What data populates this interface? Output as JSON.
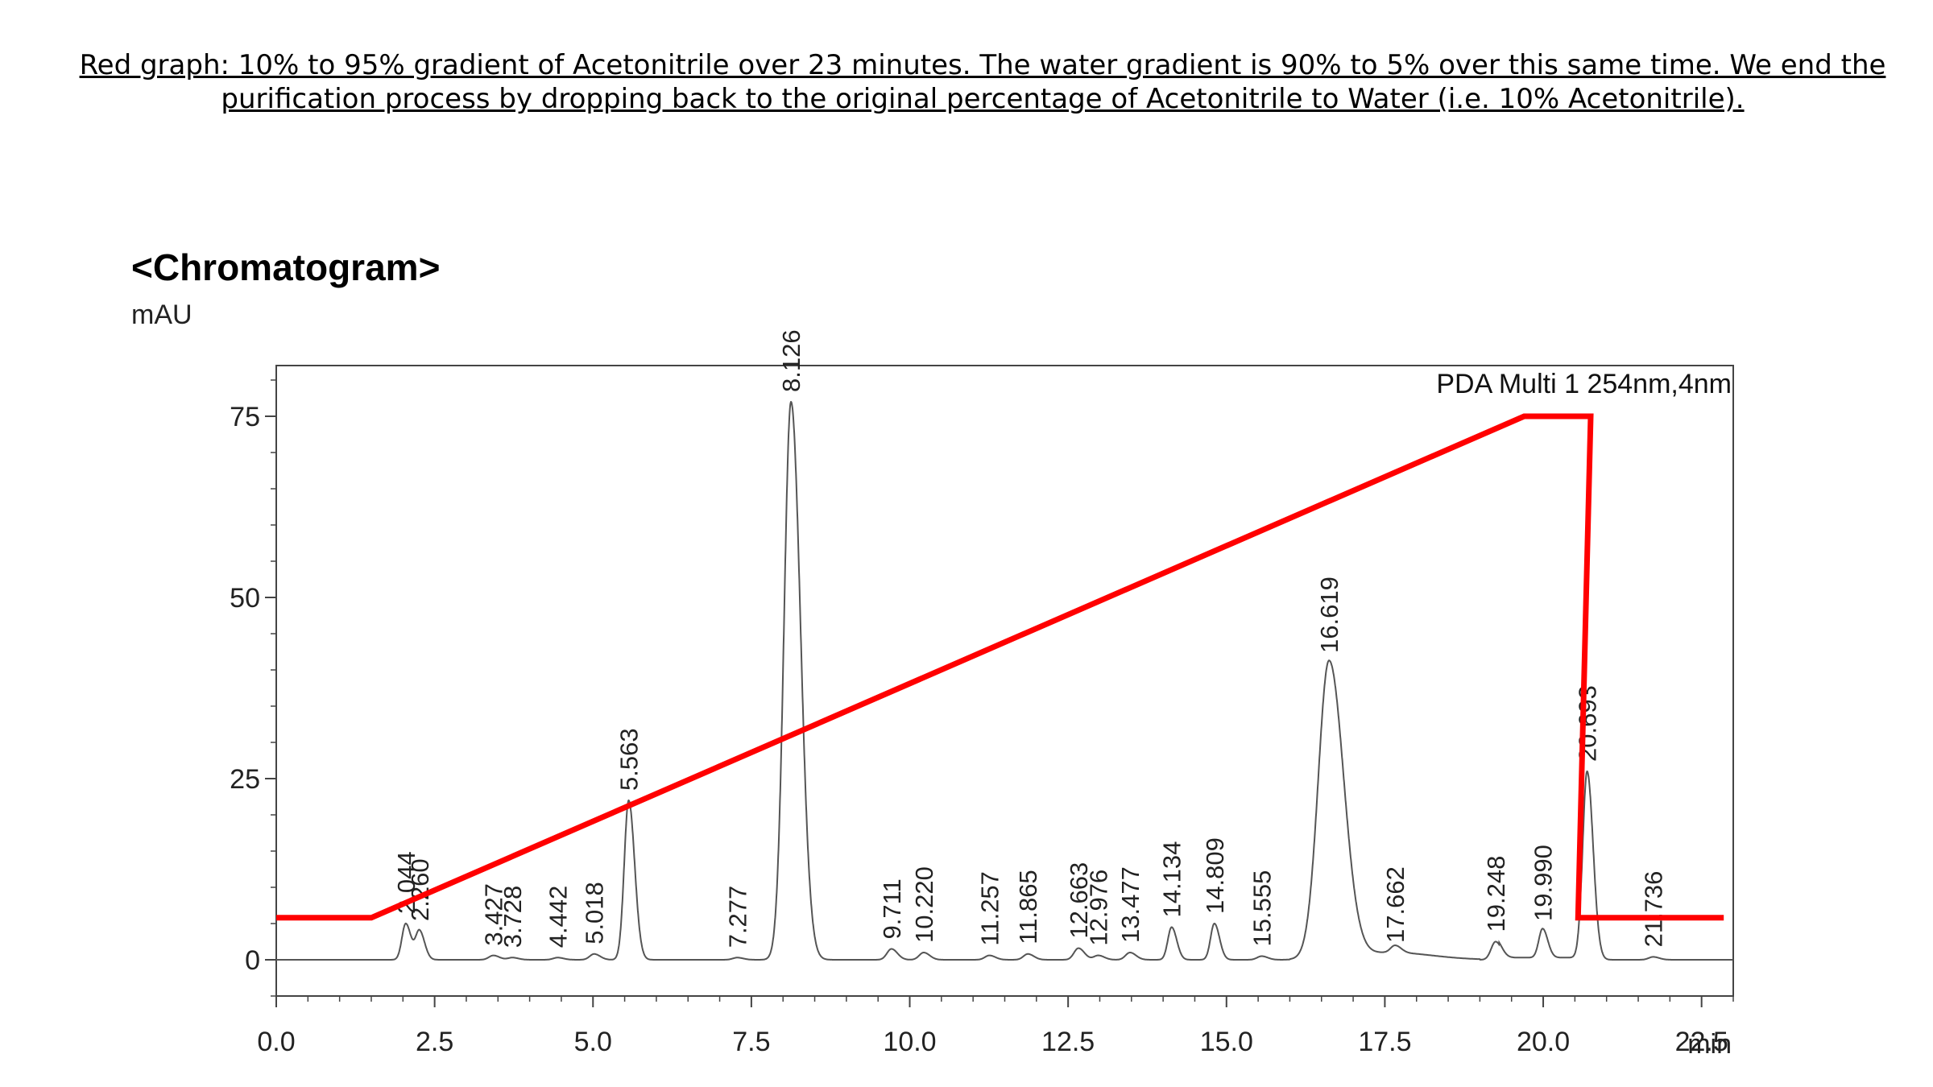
{
  "caption": {
    "line1": "Red graph: 10% to 95% gradient of Acetonitrile over 23 minutes. The water gradient is 90% to 5% over this same time. We end the",
    "line2": "purification process by dropping back to the original percentage of Acetonitrile to Water (i.e. 10% Acetonitrile)."
  },
  "chart_data": {
    "type": "line",
    "title": "<Chromatogram>",
    "ylabel": "mAU",
    "xlabel": "min",
    "legend": "PDA Multi 1 254nm,4nm",
    "legend_position": "top-right",
    "xlim": [
      0.0,
      23.0
    ],
    "ylim": [
      -5,
      82
    ],
    "x_ticks": [
      "0.0",
      "2.5",
      "5.0",
      "7.5",
      "10.0",
      "12.5",
      "15.0",
      "17.5",
      "20.0",
      "22.5"
    ],
    "y_ticks": [
      "0",
      "25",
      "50",
      "75"
    ],
    "colors": {
      "chromatogram": "#555555",
      "gradient": "#ff0000",
      "axes": "#444444"
    },
    "series": [
      {
        "name": "PDA Multi 1 254nm,4nm",
        "peaks": [
          {
            "rt": 2.044,
            "label": "2.044",
            "height": 5.0
          },
          {
            "rt": 2.26,
            "label": "2.260",
            "height": 4.0
          },
          {
            "rt": 3.427,
            "label": "3.427",
            "height": 0.6
          },
          {
            "rt": 3.728,
            "label": "3.728",
            "height": 0.3
          },
          {
            "rt": 4.442,
            "label": "4.442",
            "height": 0.3
          },
          {
            "rt": 5.018,
            "label": "5.018",
            "height": 0.8
          },
          {
            "rt": 5.563,
            "label": "5.563",
            "height": 22.0
          },
          {
            "rt": 7.277,
            "label": "7.277",
            "height": 0.3
          },
          {
            "rt": 8.126,
            "label": "8.126",
            "height": 77.0
          },
          {
            "rt": 9.711,
            "label": "9.711",
            "height": 1.5
          },
          {
            "rt": 10.22,
            "label": "10.220",
            "height": 1.0
          },
          {
            "rt": 11.257,
            "label": "11.257",
            "height": 0.6
          },
          {
            "rt": 11.865,
            "label": "11.865",
            "height": 0.8
          },
          {
            "rt": 12.663,
            "label": "12.663",
            "height": 1.6
          },
          {
            "rt": 12.976,
            "label": "12.976",
            "height": 0.6
          },
          {
            "rt": 13.477,
            "label": "13.477",
            "height": 1.0
          },
          {
            "rt": 14.134,
            "label": "14.134",
            "height": 4.5
          },
          {
            "rt": 14.809,
            "label": "14.809",
            "height": 5.0
          },
          {
            "rt": 15.555,
            "label": "15.555",
            "height": 0.5
          },
          {
            "rt": 16.619,
            "label": "16.619",
            "height": 41.0
          },
          {
            "rt": 17.662,
            "label": "17.662",
            "height": 1.0
          },
          {
            "rt": 19.248,
            "label": "19.248",
            "height": 2.5
          },
          {
            "rt": 19.99,
            "label": "19.990",
            "height": 4.0
          },
          {
            "rt": 20.693,
            "label": "20.693",
            "height": 26.0
          },
          {
            "rt": 21.736,
            "label": "21.736",
            "height": 0.4
          }
        ]
      },
      {
        "name": "",
        "x": [
          0.0,
          1.5,
          19.7,
          20.75,
          20.55,
          22.85
        ],
        "y": [
          5.8,
          5.8,
          75.0,
          75.0,
          5.8,
          5.8
        ]
      }
    ]
  }
}
